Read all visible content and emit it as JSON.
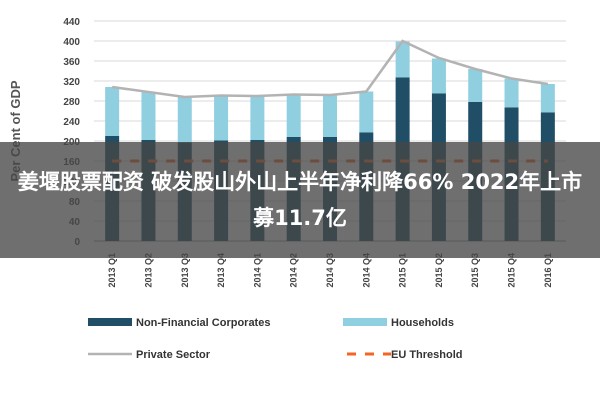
{
  "chart_data": {
    "type": "bar",
    "ylabel": "Per Cent of GDP",
    "ylim": [
      0,
      440
    ],
    "yticks": [
      0,
      40,
      80,
      120,
      160,
      200,
      240,
      280,
      320,
      360,
      400,
      440
    ],
    "grid": true,
    "categories": [
      "2013 Q1",
      "2013 Q2",
      "2013 Q3",
      "2013 Q4",
      "2014 Q1",
      "2014 Q2",
      "2014 Q3",
      "2014 Q4",
      "2015 Q1",
      "2015 Q2",
      "2015 Q3",
      "2015 Q4",
      "2016 Q1"
    ],
    "stacked": true,
    "series": [
      {
        "name": "Non-Financial Corporates",
        "kind": "bar",
        "color": "#1f4e66",
        "values": [
          210,
          202,
          197,
          201,
          202,
          208,
          208,
          217,
          327,
          295,
          278,
          267,
          257
        ]
      },
      {
        "name": "Households",
        "kind": "bar",
        "color": "#8fcfe0",
        "values": [
          98,
          95,
          91,
          91,
          88,
          86,
          84,
          82,
          72,
          70,
          66,
          58,
          57
        ]
      },
      {
        "name": "Private Sector",
        "kind": "line",
        "color": "#b3b3b3",
        "values": [
          308,
          298,
          288,
          291,
          290,
          293,
          292,
          299,
          400,
          366,
          344,
          325,
          314
        ]
      },
      {
        "name": "EU Threshold",
        "kind": "dashed-line",
        "color": "#f26522",
        "values": [
          160,
          160,
          160,
          160,
          160,
          160,
          160,
          160,
          160,
          160,
          160,
          160,
          160
        ]
      }
    ],
    "legend_position": "bottom"
  },
  "overlay": {
    "text": "姜堰股票配资 破发股山外山上半年净利降66% 2022年上市募11.7亿"
  }
}
